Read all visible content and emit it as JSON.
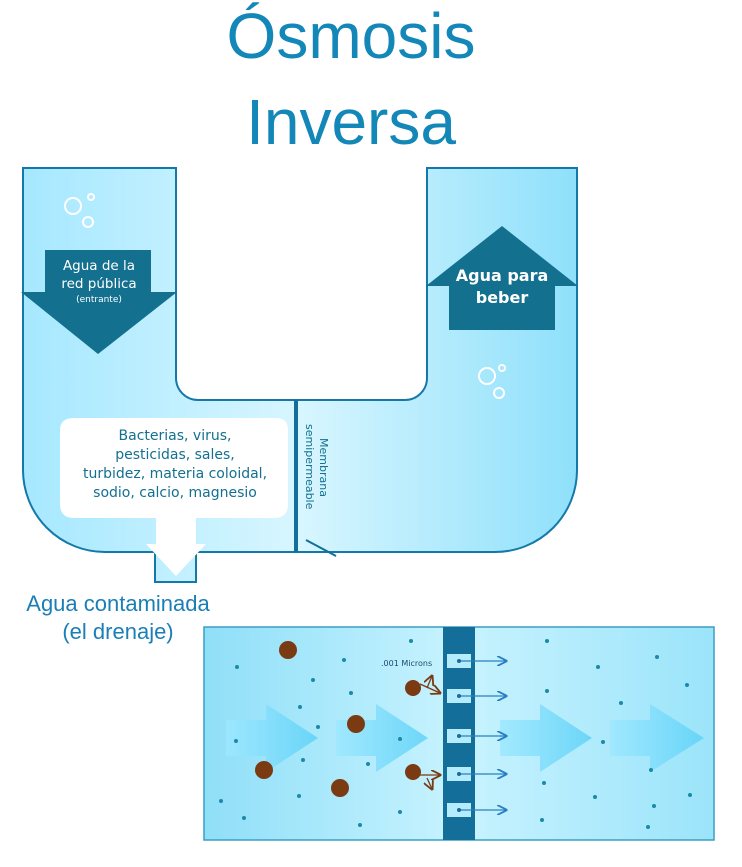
{
  "title": {
    "line1": "Ósmosis",
    "line2": "Inversa"
  },
  "inlet_label": {
    "line1": "Agua de la",
    "line2": "red pública",
    "line3": "(entrante)"
  },
  "outlet_label": {
    "line1": "Agua para",
    "line2": "beber"
  },
  "contaminants": {
    "line1": "Bacterias, virus,",
    "line2": "pesticidas, sales,",
    "line3": "turbidez, materia coloidal,",
    "line4": "sodio, calcio, magnesio"
  },
  "membrane_label": {
    "line1": "Membrana",
    "line2": "semipermeable"
  },
  "drain_label": {
    "line1": "Agua contaminada",
    "line2": "(el drenaje)"
  },
  "detail": {
    "pore_size": ".001 Microns"
  },
  "colors": {
    "title": "#1287b8",
    "water_light": "#bfefff",
    "water_mid": "#7fdcfa",
    "outline": "#1478a8",
    "arrow_dark": "#13708f",
    "particle": "#7a3a12",
    "dot": "#1a8aa8"
  }
}
